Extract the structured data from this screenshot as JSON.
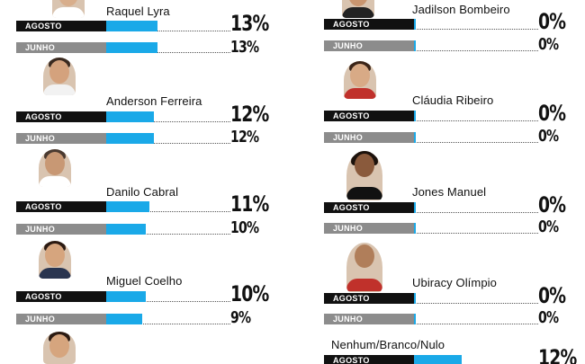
{
  "legend": {
    "agosto": "AGOSTO",
    "junho": "JUNHO"
  },
  "chart_data": {
    "type": "bar",
    "unit": "%",
    "series": [
      {
        "name": "AGOSTO",
        "values": [
          13,
          12,
          11,
          10,
          null,
          0,
          0,
          0,
          0,
          12
        ]
      },
      {
        "name": "JUNHO",
        "values": [
          13,
          12,
          10,
          9,
          null,
          0,
          0,
          0,
          0,
          null
        ]
      }
    ],
    "categories": [
      "Raquel Lyra",
      "Anderson Ferreira",
      "Danilo Cabral",
      "Miguel Coelho",
      "",
      "Jadilson Bombeiro",
      "Cláudia Ribeiro",
      "Jones Manuel",
      "Ubiracy Olímpio",
      "Nenhum/Branco/Nulo"
    ],
    "candidates": [
      {
        "name": "Raquel Lyra",
        "agosto": 13,
        "junho": 13,
        "agosto_label": "13%",
        "junho_label": "13%"
      },
      {
        "name": "Anderson Ferreira",
        "agosto": 12,
        "junho": 12,
        "agosto_label": "12%",
        "junho_label": "12%"
      },
      {
        "name": "Danilo Cabral",
        "agosto": 11,
        "junho": 10,
        "agosto_label": "11%",
        "junho_label": "10%"
      },
      {
        "name": "Miguel Coelho",
        "agosto": 10,
        "junho": 9,
        "agosto_label": "10%",
        "junho_label": "9%"
      },
      {
        "name": "Jadilson Bombeiro",
        "agosto": 0,
        "junho": 0,
        "agosto_label": "0%",
        "junho_label": "0%"
      },
      {
        "name": "Cláudia Ribeiro",
        "agosto": 0,
        "junho": 0,
        "agosto_label": "0%",
        "junho_label": "0%"
      },
      {
        "name": "Jones Manuel",
        "agosto": 0,
        "junho": 0,
        "agosto_label": "0%",
        "junho_label": "0%"
      },
      {
        "name": "Ubiracy Olímpio",
        "agosto": 0,
        "junho": 0,
        "agosto_label": "0%",
        "junho_label": "0%"
      },
      {
        "name": "Nenhum/Branco/Nulo",
        "agosto": 12,
        "junho": null,
        "agosto_label": "12%",
        "junho_label": ""
      }
    ],
    "bar_color": "#1aa9e8",
    "agosto_color": "#111111",
    "junho_color": "#8c8c8c"
  }
}
